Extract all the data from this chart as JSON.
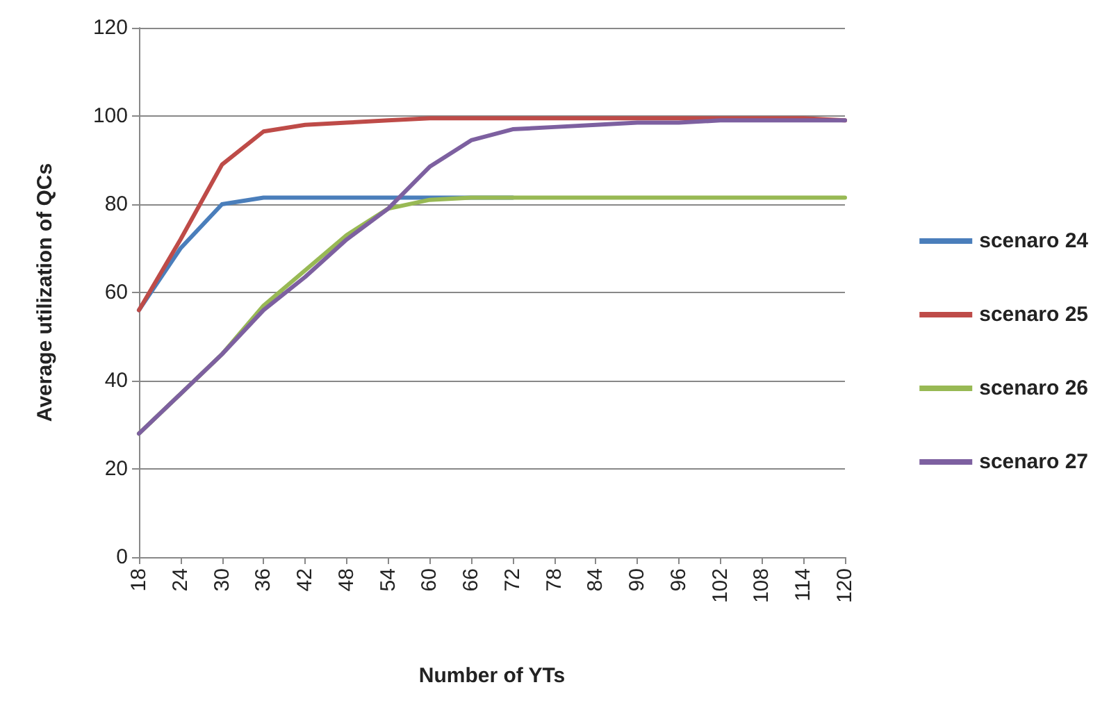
{
  "chart_data": {
    "type": "line",
    "xlabel": "Number of YTs",
    "ylabel": "Average utilization of QCs",
    "categories": [
      "18",
      "24",
      "30",
      "36",
      "42",
      "48",
      "54",
      "60",
      "66",
      "72",
      "78",
      "84",
      "90",
      "96",
      "102",
      "108",
      "114",
      "120"
    ],
    "series": [
      {
        "name": "scenaro 24",
        "color": "#4a7ebb",
        "values": [
          56,
          70,
          80,
          81.5,
          81.5,
          81.5,
          81.5,
          81.5,
          81.5,
          81.5,
          null,
          null,
          null,
          null,
          null,
          null,
          null,
          null
        ]
      },
      {
        "name": "scenaro 25",
        "color": "#be4b48",
        "values": [
          56,
          72,
          89,
          96.5,
          98,
          98.5,
          99,
          99.5,
          99.5,
          99.5,
          99.5,
          99.5,
          99.5,
          99.5,
          99.5,
          99.5,
          99.5,
          99
        ]
      },
      {
        "name": "scenaro 26",
        "color": "#98b954",
        "values": [
          28,
          37,
          46,
          57,
          65,
          73,
          79,
          81,
          81.5,
          81.5,
          81.5,
          81.5,
          81.5,
          81.5,
          81.5,
          81.5,
          81.5,
          81.5
        ]
      },
      {
        "name": "scenaro 27",
        "color": "#7d60a0",
        "values": [
          28,
          37,
          46,
          56,
          63.5,
          72,
          79,
          88.5,
          94.5,
          97,
          97.5,
          98,
          98.5,
          98.5,
          99,
          99,
          99,
          99
        ]
      }
    ],
    "ylim": [
      0,
      120
    ],
    "yticks": [
      0,
      20,
      40,
      60,
      80,
      100,
      120
    ],
    "grid": "y",
    "legend": "right",
    "marker": "none",
    "line_style": "solid"
  }
}
